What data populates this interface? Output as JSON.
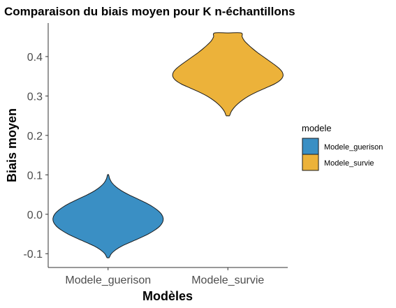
{
  "chart_data": {
    "type": "violin",
    "title": "Comparaison du biais moyen pour K n-échantillons",
    "xlabel": "Modèles",
    "ylabel": "Biais moyen",
    "categories": [
      "Modele_guerison",
      "Modele_survie"
    ],
    "ylim": [
      -0.135,
      0.485
    ],
    "y_ticks": [
      -0.1,
      0.0,
      0.1,
      0.2,
      0.3,
      0.4
    ],
    "y_tick_labels": [
      "-0.1",
      "0.0",
      "0.1",
      "0.2",
      "0.3",
      "0.4"
    ],
    "legend": {
      "title": "modele",
      "position": "right",
      "entries": [
        {
          "label": "Modele_guerison",
          "color": "#3a8fc4"
        },
        {
          "label": "Modele_survie",
          "color": "#ecb23a"
        }
      ]
    },
    "series": [
      {
        "name": "Modele_guerison",
        "color": "#3a8fc4",
        "min": -0.11,
        "max": 0.1,
        "density_y": [
          -0.11,
          -0.1,
          -0.09,
          -0.08,
          -0.07,
          -0.06,
          -0.05,
          -0.04,
          -0.03,
          -0.02,
          -0.01,
          0.0,
          0.01,
          0.02,
          0.03,
          0.04,
          0.05,
          0.06,
          0.07,
          0.08,
          0.09,
          0.1
        ],
        "density_w": [
          0.02,
          0.06,
          0.14,
          0.26,
          0.42,
          0.58,
          0.73,
          0.85,
          0.94,
          0.99,
          1.0,
          0.97,
          0.9,
          0.8,
          0.67,
          0.52,
          0.37,
          0.24,
          0.14,
          0.07,
          0.03,
          0.01
        ]
      },
      {
        "name": "Modele_survie",
        "color": "#ecb23a",
        "min": 0.25,
        "max": 0.46,
        "density_y": [
          0.25,
          0.26,
          0.27,
          0.28,
          0.29,
          0.3,
          0.31,
          0.32,
          0.33,
          0.34,
          0.35,
          0.36,
          0.37,
          0.38,
          0.39,
          0.4,
          0.41,
          0.42,
          0.43,
          0.44,
          0.45,
          0.46
        ],
        "density_w": [
          0.03,
          0.06,
          0.11,
          0.18,
          0.27,
          0.38,
          0.52,
          0.68,
          0.84,
          0.95,
          1.0,
          0.99,
          0.93,
          0.84,
          0.74,
          0.64,
          0.54,
          0.45,
          0.37,
          0.3,
          0.26,
          0.24
        ]
      }
    ]
  }
}
